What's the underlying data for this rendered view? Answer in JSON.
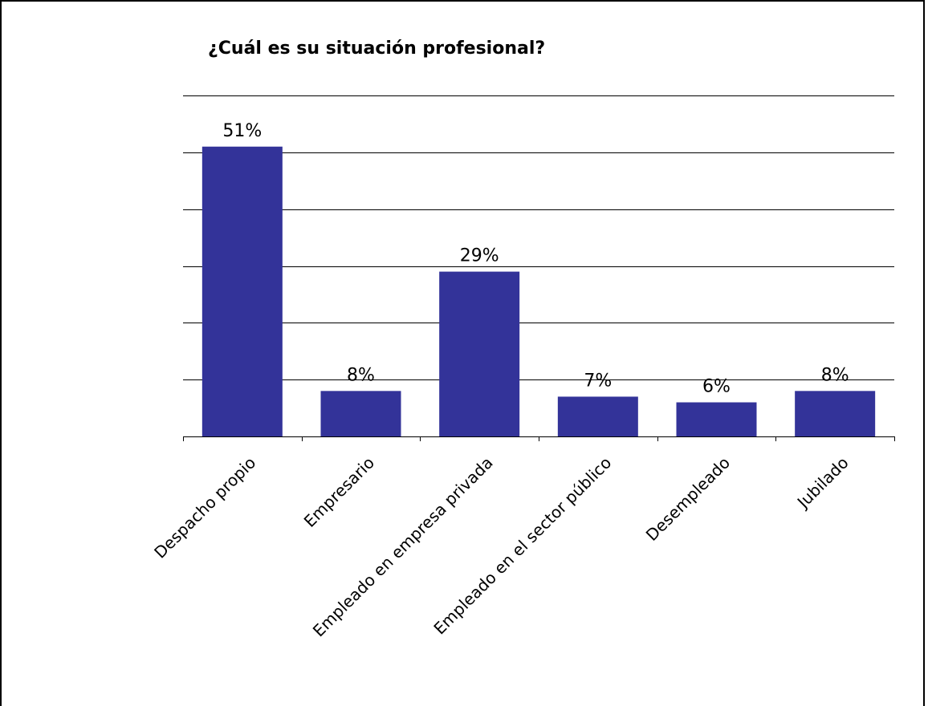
{
  "chart_data": {
    "type": "bar",
    "title": "¿Cuál es su situación profesional?",
    "categories": [
      "Despacho propio",
      "Empresario",
      "Empleado en empresa privada",
      "Empleado en el sector público",
      "Desempleado",
      "Jubilado"
    ],
    "values": [
      51,
      8,
      29,
      7,
      6,
      8
    ],
    "value_labels": [
      "51%",
      "8%",
      "29%",
      "7%",
      "6%",
      "8%"
    ],
    "ylim": [
      0,
      60
    ],
    "grid": true,
    "bar_color": "#333399"
  }
}
